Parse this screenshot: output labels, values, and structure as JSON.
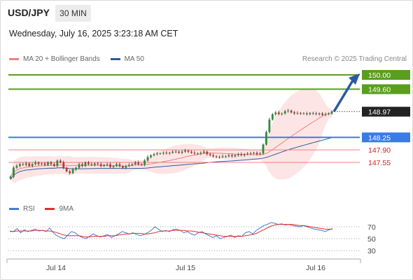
{
  "header": {
    "symbol": "USD/JPY",
    "timeframe": "30 MIN",
    "datetime": "Wednesday, July 16, 2025 3:23:18 AM CET"
  },
  "legend": {
    "items": [
      {
        "label": "MA 20 + Bollinger Bands",
        "color": "#f08080"
      },
      {
        "label": "MA 50",
        "color": "#2c5aa0"
      }
    ],
    "credit": "Research © 2025 Trading Central"
  },
  "rsi_legend": {
    "items": [
      {
        "label": "RSI",
        "color": "#4a7bd0"
      },
      {
        "label": "9MA",
        "color": "#e03030"
      }
    ]
  },
  "chart_data": [
    {
      "type": "candlestick",
      "ylim": [
        147.1,
        150.2
      ],
      "levels": [
        {
          "value": 150.0,
          "label": "150.00",
          "color": "#5a9e1e",
          "style": "solid"
        },
        {
          "value": 149.6,
          "label": "149.60",
          "color": "#5a9e1e",
          "style": "solid"
        },
        {
          "value": 148.97,
          "label": "148.97",
          "color": "#222222",
          "style": "current"
        },
        {
          "value": 148.25,
          "label": "148.25",
          "color": "#3b7be8",
          "style": "solid"
        },
        {
          "value": 147.9,
          "label": "147.90",
          "color": "#f08080",
          "style": "thin"
        },
        {
          "value": 147.55,
          "label": "147.55",
          "color": "#f08080",
          "style": "thin"
        }
      ],
      "x_ticks": [
        "Jul 14",
        "Jul 15",
        "Jul 16"
      ],
      "arrow": {
        "from": 148.97,
        "to": 150.0,
        "color": "#2c5aa0"
      },
      "price_path": [
        147.15,
        147.4,
        147.45,
        147.5,
        147.48,
        147.52,
        147.45,
        147.5,
        147.55,
        147.5,
        147.52,
        147.48,
        147.55,
        147.5,
        147.45,
        147.6,
        147.55,
        147.4,
        147.3,
        147.25,
        147.35,
        147.4,
        147.5,
        147.45,
        147.55,
        147.5,
        147.48,
        147.52,
        147.5,
        147.45,
        147.48,
        147.5,
        147.42,
        147.45,
        147.5,
        147.45,
        147.4,
        147.45,
        147.48,
        147.5,
        147.55,
        147.5,
        147.48,
        147.6,
        147.7,
        147.75,
        147.78,
        147.8,
        147.8,
        147.82,
        147.8,
        147.82,
        147.85,
        147.85,
        147.82,
        147.85,
        147.88,
        147.85,
        147.82,
        147.8,
        147.8,
        147.82,
        147.85,
        147.78,
        147.75,
        147.72,
        147.7,
        147.7,
        147.72,
        147.72,
        147.75,
        147.72,
        147.75,
        147.78,
        147.75,
        147.78,
        147.8,
        147.8,
        147.82,
        147.78,
        147.8,
        148.05,
        148.4,
        148.75,
        148.9,
        148.95,
        148.9,
        148.92,
        148.98,
        149.0,
        148.95,
        148.92,
        148.93,
        148.92,
        148.92,
        148.9,
        148.93,
        148.92,
        148.9,
        148.92,
        148.88,
        148.9,
        148.92,
        148.97
      ]
    },
    {
      "type": "line",
      "ylim": [
        20,
        85
      ],
      "y_ticks": [
        70,
        50,
        30
      ],
      "series": [
        {
          "name": "RSI",
          "color": "#4a7bd0"
        },
        {
          "name": "9MA",
          "color": "#e03030"
        }
      ],
      "rsi": [
        63,
        62,
        67,
        60,
        65,
        62,
        64,
        66,
        63,
        64,
        62,
        68,
        60,
        55,
        52,
        50,
        56,
        62,
        60,
        55,
        52,
        50,
        54,
        58,
        55,
        53,
        55,
        57,
        52,
        55,
        58,
        62,
        60,
        58,
        60,
        57,
        55,
        57,
        60,
        64,
        70,
        66,
        62,
        64,
        62,
        65,
        66,
        64,
        60,
        62,
        58,
        56,
        60,
        62,
        58,
        55,
        52,
        55,
        50,
        52,
        54,
        56,
        52,
        55,
        54,
        60,
        62,
        58,
        64,
        68,
        72,
        74,
        77,
        76,
        74,
        75,
        73,
        74,
        72,
        71,
        70,
        72,
        70,
        68,
        66,
        65,
        64,
        62,
        65,
        67
      ],
      "ma9": [
        62,
        62,
        63,
        63,
        63,
        63,
        63,
        64,
        64,
        64,
        63,
        63,
        62,
        60,
        58,
        56,
        55,
        55,
        55,
        55,
        54,
        53,
        53,
        54,
        54,
        54,
        54,
        55,
        55,
        55,
        56,
        57,
        58,
        58,
        59,
        59,
        59,
        58,
        58,
        59,
        60,
        62,
        63,
        63,
        63,
        64,
        64,
        64,
        64,
        63,
        63,
        62,
        61,
        60,
        59,
        58,
        57,
        56,
        55,
        54,
        54,
        54,
        54,
        54,
        54,
        55,
        56,
        57,
        59,
        62,
        65,
        68,
        71,
        73,
        74,
        74,
        74,
        74,
        74,
        73,
        72,
        72,
        71,
        70,
        69,
        68,
        67,
        66,
        66,
        66
      ]
    }
  ]
}
